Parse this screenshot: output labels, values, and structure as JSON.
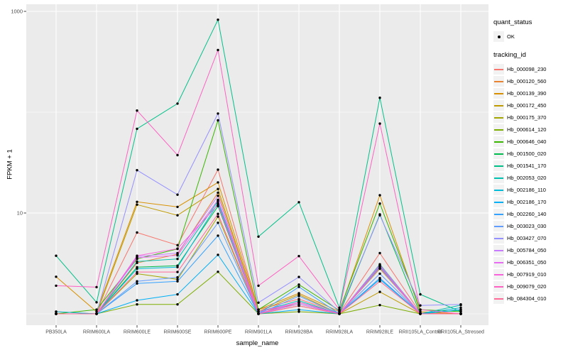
{
  "chart_data": {
    "type": "line",
    "xlabel": "sample_name",
    "ylabel": "FPKM + 1",
    "y_scale": "log10",
    "y_major_ticks": [
      {
        "value": 1000,
        "label": "1000"
      },
      {
        "value": 10,
        "label": "10"
      }
    ],
    "y_minor_ticks": [
      100,
      1
    ],
    "ylim": [
      0.9,
      1100
    ],
    "grid": true,
    "panel_bg": "#EBEBEB",
    "grid_color": "#FFFFFF",
    "point_color": "#000000",
    "axis_text_color": "#4D4D4D",
    "legend": {
      "position": "right",
      "quant_status_title": "quant_status",
      "quant_status_items": [
        {
          "label": "OK",
          "marker": "black-point"
        }
      ],
      "tracking_title": "tracking_id"
    },
    "categories": [
      "PB350LA",
      "RRIM600LA",
      "RRIM600LE",
      "RRIM600SE",
      "RRIM600PE",
      "RRIM901LA",
      "RRIM928BA",
      "RRIM928LA",
      "RRIM928LE",
      "RRII105LA_Control",
      "RRII105LA_Stressed"
    ],
    "series": [
      {
        "name": "Hb_000098_230",
        "color": "#F8766D",
        "values": [
          1.05,
          1.0,
          6.4,
          4.8,
          26.9,
          1.1,
          1.4,
          1.02,
          4.0,
          1.02,
          1.0
        ]
      },
      {
        "name": "Hb_000120_560",
        "color": "#EA8331",
        "values": [
          1.0,
          1.0,
          3.2,
          3.9,
          15.9,
          1.05,
          1.25,
          1.0,
          2.9,
          1.0,
          1.0
        ]
      },
      {
        "name": "Hb_000139_390",
        "color": "#D89000",
        "values": [
          2.33,
          1.05,
          12.9,
          11.5,
          20.1,
          1.1,
          1.6,
          1.05,
          15.0,
          1.05,
          1.0
        ]
      },
      {
        "name": "Hb_000172_450",
        "color": "#C09B00",
        "values": [
          1.0,
          1.0,
          12.1,
          9.5,
          17.3,
          1.05,
          1.55,
          1.0,
          1.65,
          1.0,
          1.0
        ]
      },
      {
        "name": "Hb_000175_370",
        "color": "#A3A500",
        "values": [
          1.0,
          1.0,
          2.5,
          2.2,
          9.2,
          1.0,
          1.2,
          1.0,
          2.8,
          1.0,
          1.0
        ]
      },
      {
        "name": "Hb_000614_120",
        "color": "#7CAE00",
        "values": [
          1.0,
          1.0,
          1.24,
          1.24,
          2.61,
          1.0,
          1.05,
          1.0,
          1.22,
          1.0,
          1.0
        ]
      },
      {
        "name": "Hb_000646_040",
        "color": "#39B600",
        "values": [
          1.0,
          1.1,
          3.5,
          4.4,
          83.0,
          1.1,
          1.95,
          1.08,
          12.4,
          1.1,
          1.05
        ]
      },
      {
        "name": "Hb_001500_020",
        "color": "#00BB4E",
        "values": [
          1.0,
          1.0,
          2.9,
          3.0,
          11.7,
          1.0,
          1.3,
          1.0,
          9.7,
          1.0,
          1.09
        ]
      },
      {
        "name": "Hb_001541_170",
        "color": "#00C087",
        "values": [
          3.77,
          1.3,
          68.4,
          121.6,
          826.0,
          5.83,
          12.8,
          1.15,
          139.0,
          1.56,
          1.05
        ]
      },
      {
        "name": "Hb_002053_020",
        "color": "#00C0AF",
        "values": [
          1.0,
          1.0,
          3.3,
          3.5,
          13.1,
          1.05,
          1.35,
          1.0,
          3.1,
          1.0,
          1.22
        ]
      },
      {
        "name": "Hb_002186_110",
        "color": "#00BCD8",
        "values": [
          1.05,
          1.0,
          2.8,
          2.9,
          12.5,
          1.0,
          1.3,
          1.0,
          2.95,
          1.0,
          1.15
        ]
      },
      {
        "name": "Hb_002186_170",
        "color": "#00B0F6",
        "values": [
          1.0,
          1.0,
          1.36,
          1.56,
          3.85,
          1.0,
          1.1,
          1.0,
          2.2,
          1.0,
          1.1
        ]
      },
      {
        "name": "Hb_002260_140",
        "color": "#35A2FF",
        "values": [
          1.0,
          1.0,
          2.0,
          2.1,
          5.96,
          1.0,
          1.85,
          1.0,
          2.26,
          1.0,
          1.0
        ]
      },
      {
        "name": "Hb_003023_030",
        "color": "#619CFF",
        "values": [
          1.0,
          1.0,
          2.1,
          2.3,
          8.0,
          1.0,
          1.5,
          1.0,
          2.5,
          1.0,
          1.0
        ]
      },
      {
        "name": "Hb_003427_070",
        "color": "#9590FF",
        "values": [
          1.0,
          1.0,
          26.6,
          15.2,
          97.0,
          1.29,
          2.32,
          1.05,
          9.5,
          1.21,
          1.24
        ]
      },
      {
        "name": "Hb_005784_050",
        "color": "#C77CFF",
        "values": [
          1.0,
          1.0,
          3.7,
          4.0,
          14.8,
          1.0,
          1.25,
          1.0,
          3.0,
          1.0,
          1.0
        ]
      },
      {
        "name": "Hb_006351_050",
        "color": "#E76BF3",
        "values": [
          1.0,
          1.0,
          3.6,
          3.8,
          13.5,
          1.05,
          1.3,
          1.0,
          2.85,
          1.0,
          1.0
        ]
      },
      {
        "name": "Hb_007919_010",
        "color": "#FA62DB",
        "values": [
          1.0,
          1.0,
          3.77,
          4.43,
          12.1,
          1.0,
          1.3,
          1.0,
          3.05,
          1.0,
          1.0
        ]
      },
      {
        "name": "Hb_009079_020",
        "color": "#FF61C3",
        "values": [
          1.9,
          1.84,
          103.8,
          37.5,
          413.0,
          1.9,
          3.74,
          1.1,
          77.0,
          1.1,
          1.0
        ]
      },
      {
        "name": "Hb_084304_010",
        "color": "#FF6A98",
        "values": [
          1.0,
          1.0,
          2.6,
          2.6,
          9.8,
          1.0,
          1.2,
          1.0,
          2.1,
          1.0,
          1.0
        ]
      }
    ]
  }
}
